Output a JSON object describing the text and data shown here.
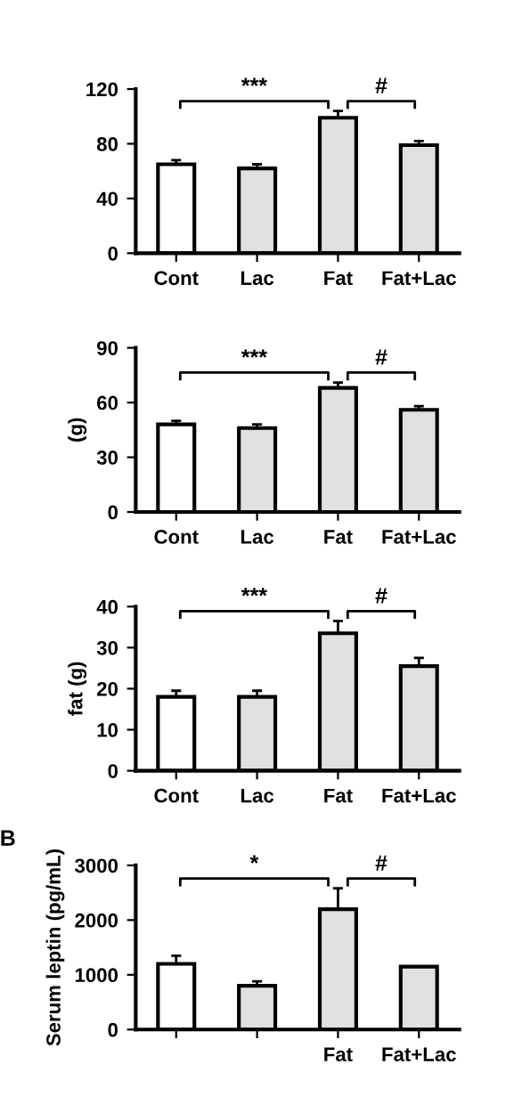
{
  "chart_data": [
    {
      "type": "bar",
      "categories": [
        "Cont",
        "Lac",
        "Fat",
        "Fat+Lac"
      ],
      "values": [
        65,
        62,
        99,
        79
      ],
      "errors": [
        3,
        3,
        5,
        3
      ],
      "colors": [
        "#ffffff",
        "#e0e0e0",
        "#e0e0e0",
        "#e0e0e0"
      ],
      "ylim": [
        0,
        120
      ],
      "yticks": [
        0,
        40,
        80,
        120
      ],
      "annotations": [
        "***",
        "#"
      ],
      "grid": false,
      "legend": false
    },
    {
      "type": "bar",
      "ylabel": "(g)",
      "categories": [
        "Cont",
        "Lac",
        "Fat",
        "Fat+Lac"
      ],
      "values": [
        48,
        46,
        68,
        56
      ],
      "errors": [
        2,
        2,
        3,
        2
      ],
      "colors": [
        "#ffffff",
        "#e0e0e0",
        "#e0e0e0",
        "#e0e0e0"
      ],
      "ylim": [
        0,
        90
      ],
      "yticks": [
        0,
        30,
        60,
        90
      ],
      "annotations": [
        "***",
        "#"
      ],
      "grid": false,
      "legend": false
    },
    {
      "type": "bar",
      "ylabel": "fat (g)",
      "categories": [
        "Cont",
        "Lac",
        "Fat",
        "Fat+Lac"
      ],
      "values": [
        18,
        18,
        33.5,
        25.5
      ],
      "errors": [
        1.5,
        1.5,
        3,
        2
      ],
      "colors": [
        "#ffffff",
        "#e0e0e0",
        "#e0e0e0",
        "#e0e0e0"
      ],
      "ylim": [
        0,
        40
      ],
      "yticks": [
        0,
        10,
        20,
        30,
        40
      ],
      "annotations": [
        "***",
        "#"
      ],
      "grid": false,
      "legend": false
    },
    {
      "type": "bar",
      "title": "B",
      "ylabel": "Serum leptin (pg/mL)",
      "categories": [
        null,
        null,
        "Fat",
        "Fat+Lac"
      ],
      "values": [
        1200,
        800,
        2200,
        1150
      ],
      "errors": [
        150,
        80,
        380,
        null
      ],
      "colors": [
        "#ffffff",
        "#e0e0e0",
        "#e0e0e0",
        "#e0e0e0"
      ],
      "ylim": [
        0,
        3000
      ],
      "yticks": [
        0,
        1000,
        2000,
        3000
      ],
      "annotations": [
        "*",
        "#"
      ],
      "grid": false,
      "legend": false
    }
  ]
}
